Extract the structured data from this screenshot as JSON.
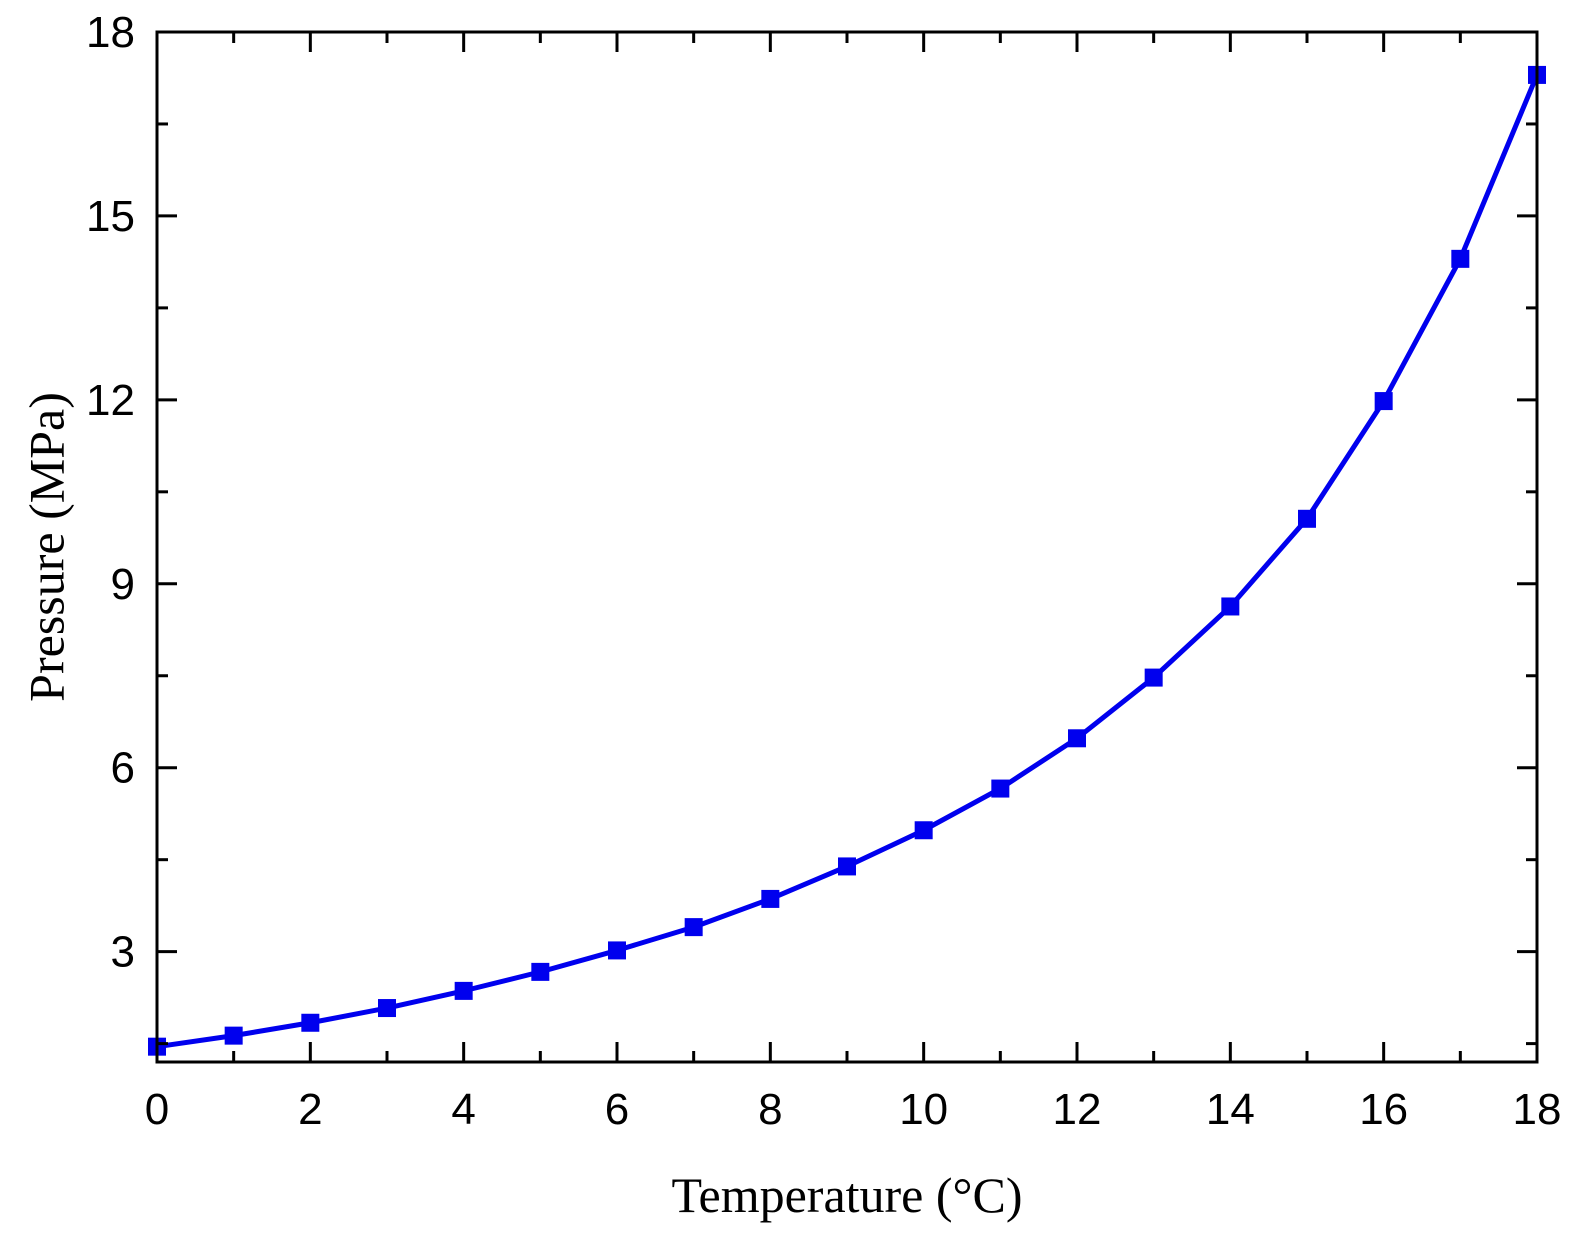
{
  "chart_data": {
    "type": "line",
    "title": "",
    "xlabel": "Temperature (°C)",
    "ylabel": "Pressure (MPa)",
    "xlim": [
      0,
      18
    ],
    "ylim": [
      1.2,
      18
    ],
    "x_ticks": [
      0,
      2,
      4,
      6,
      8,
      10,
      12,
      14,
      16,
      18
    ],
    "y_ticks": [
      3,
      6,
      9,
      12,
      15,
      18
    ],
    "grid": false,
    "legend": "none",
    "series": [
      {
        "marker": "square",
        "color": "#0000ee",
        "x": [
          0,
          1,
          2,
          3,
          4,
          5,
          6,
          7,
          8,
          9,
          10,
          11,
          12,
          13,
          14,
          15,
          16,
          17,
          18
        ],
        "y": [
          1.45,
          1.63,
          1.84,
          2.08,
          2.36,
          2.67,
          3.02,
          3.4,
          3.86,
          4.39,
          4.98,
          5.66,
          6.48,
          7.47,
          8.63,
          10.06,
          11.98,
          14.3,
          17.3
        ]
      }
    ]
  }
}
